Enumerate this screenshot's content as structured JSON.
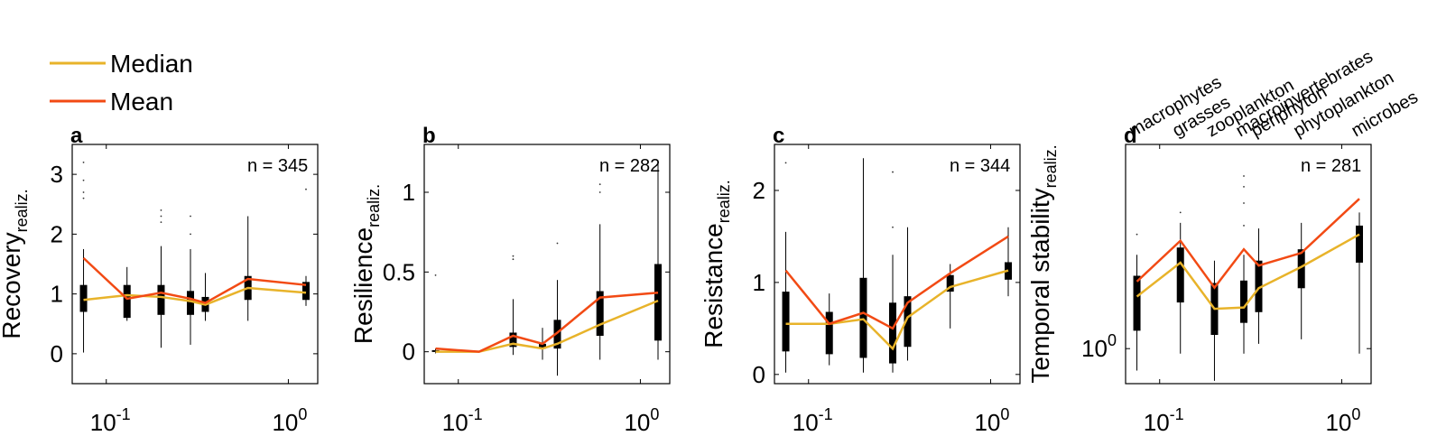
{
  "legend": {
    "median_label": "Median",
    "mean_label": "Mean",
    "median_color": "#e8b32a",
    "mean_color": "#f24a14"
  },
  "categories": [
    "macrophytes",
    "grasses",
    "zooplankton",
    "macroinvertebrates",
    "periphyton",
    "phytoplankton",
    "microbes"
  ],
  "chart_data": [
    {
      "type": "box",
      "panel": "a",
      "n_label": "n = 345",
      "ylabel": "Recovery",
      "ylabel_sub": "realiz.",
      "xscale": "log",
      "xlim": [
        0.065,
        1.45
      ],
      "ylim": [
        -0.5,
        3.5
      ],
      "yticks": [
        0,
        1,
        2,
        3
      ],
      "ytick_labels": [
        "0",
        "1",
        "2",
        "3"
      ],
      "x": [
        0.075,
        0.13,
        0.2,
        0.29,
        0.35,
        0.6,
        1.25
      ],
      "boxes": [
        {
          "q1": 0.7,
          "q3": 1.15,
          "wlo": 0.02,
          "whi": 1.75,
          "out": [
            2.6,
            2.7,
            2.9,
            3.2
          ]
        },
        {
          "q1": 0.6,
          "q3": 1.15,
          "wlo": 0.55,
          "whi": 1.45,
          "out": []
        },
        {
          "q1": 0.65,
          "q3": 1.15,
          "wlo": 0.1,
          "whi": 1.8,
          "out": [
            2.2,
            2.3,
            2.4
          ]
        },
        {
          "q1": 0.65,
          "q3": 1.05,
          "wlo": 0.15,
          "whi": 1.75,
          "out": [
            2.0,
            2.3
          ]
        },
        {
          "q1": 0.7,
          "q3": 0.95,
          "wlo": 0.55,
          "whi": 1.35,
          "out": []
        },
        {
          "q1": 0.9,
          "q3": 1.3,
          "wlo": 0.55,
          "whi": 2.3,
          "out": []
        },
        {
          "q1": 0.9,
          "q3": 1.2,
          "wlo": 0.8,
          "whi": 1.3,
          "out": [
            2.75
          ]
        }
      ],
      "median_line": [
        0.9,
        0.98,
        0.95,
        0.88,
        0.82,
        1.1,
        1.02
      ],
      "mean_line": [
        1.6,
        0.92,
        1.02,
        0.92,
        0.85,
        1.25,
        1.15
      ],
      "xticks": [
        0.1,
        1.0
      ],
      "xtick_labels": [
        "10",
        "10"
      ],
      "xtick_exponents": [
        "-1",
        "0"
      ]
    },
    {
      "type": "box",
      "panel": "b",
      "n_label": "n = 282",
      "ylabel": "Resilience",
      "ylabel_sub": "realiz.",
      "xscale": "log",
      "xlim": [
        0.065,
        1.45
      ],
      "ylim": [
        -0.2,
        1.3
      ],
      "yticks": [
        0,
        0.5,
        1
      ],
      "ytick_labels": [
        "0",
        "0.5",
        "1"
      ],
      "x": [
        0.075,
        0.2,
        0.29,
        0.35,
        0.6,
        1.25
      ],
      "boxes": [
        {
          "q1": 0.0,
          "q3": 0.01,
          "wlo": -0.01,
          "whi": 0.02,
          "out": [
            0.48
          ]
        },
        {
          "q1": 0.03,
          "q3": 0.12,
          "wlo": -0.02,
          "whi": 0.33,
          "out": [
            0.58,
            0.6
          ]
        },
        {
          "q1": 0.02,
          "q3": 0.05,
          "wlo": -0.05,
          "whi": 0.15,
          "out": []
        },
        {
          "q1": 0.02,
          "q3": 0.2,
          "wlo": -0.15,
          "whi": 0.45,
          "out": [
            0.68
          ]
        },
        {
          "q1": 0.1,
          "q3": 0.38,
          "wlo": -0.05,
          "whi": 0.8,
          "out": [
            1.0,
            1.05
          ]
        },
        {
          "q1": 0.07,
          "q3": 0.55,
          "wlo": -0.05,
          "whi": 1.2,
          "out": []
        }
      ],
      "median_line_x": [
        0.075,
        0.13,
        0.2,
        0.29,
        0.35,
        0.6,
        1.25
      ],
      "median_line": [
        0.0,
        0.0,
        0.05,
        0.02,
        0.05,
        0.17,
        0.32
      ],
      "mean_line": [
        0.02,
        0.0,
        0.1,
        0.05,
        0.12,
        0.34,
        0.37
      ],
      "xticks": [
        0.1,
        1.0
      ],
      "xtick_labels": [
        "10",
        "10"
      ],
      "xtick_exponents": [
        "-1",
        "0"
      ]
    },
    {
      "type": "box",
      "panel": "c",
      "n_label": "n = 344",
      "ylabel": "Resistance",
      "ylabel_sub": "realiz.",
      "xscale": "log",
      "xlim": [
        0.065,
        1.45
      ],
      "ylim": [
        -0.1,
        2.5
      ],
      "yticks": [
        0,
        1,
        2
      ],
      "ytick_labels": [
        "0",
        "1",
        "2"
      ],
      "x": [
        0.075,
        0.13,
        0.2,
        0.29,
        0.35,
        0.6,
        1.25
      ],
      "boxes": [
        {
          "q1": 0.25,
          "q3": 0.9,
          "wlo": 0.02,
          "whi": 1.55,
          "out": [
            2.3
          ]
        },
        {
          "q1": 0.22,
          "q3": 0.68,
          "wlo": 0.1,
          "whi": 0.88,
          "out": []
        },
        {
          "q1": 0.18,
          "q3": 1.05,
          "wlo": 0.02,
          "whi": 2.35,
          "out": []
        },
        {
          "q1": 0.12,
          "q3": 0.78,
          "wlo": 0.02,
          "whi": 1.3,
          "out": [
            1.6,
            2.2
          ]
        },
        {
          "q1": 0.3,
          "q3": 0.85,
          "wlo": 0.15,
          "whi": 1.6,
          "out": []
        },
        {
          "q1": 0.9,
          "q3": 1.08,
          "wlo": 0.5,
          "whi": 1.2,
          "out": []
        },
        {
          "q1": 1.03,
          "q3": 1.22,
          "wlo": 0.85,
          "whi": 1.6,
          "out": []
        }
      ],
      "median_line": [
        0.55,
        0.55,
        0.6,
        0.28,
        0.62,
        0.95,
        1.13
      ],
      "mean_line": [
        1.13,
        0.55,
        0.67,
        0.5,
        0.78,
        1.1,
        1.5
      ],
      "xticks": [
        0.1,
        1.0
      ],
      "xtick_labels": [
        "10",
        "10"
      ],
      "xtick_exponents": [
        "-1",
        "0"
      ]
    },
    {
      "type": "box",
      "panel": "d",
      "n_label": "n = 281",
      "ylabel": "Temporal stability",
      "ylabel_sub": "realiz.",
      "xscale": "log",
      "yscale": "log",
      "xlim": [
        0.065,
        1.45
      ],
      "ylim": [
        0.7,
        8.0
      ],
      "yticks": [
        1
      ],
      "ytick_labels": [
        "10"
      ],
      "ytick_exponents": [
        "0"
      ],
      "x": [
        0.075,
        0.13,
        0.2,
        0.29,
        0.35,
        0.6,
        1.25
      ],
      "boxes": [
        {
          "q1": 1.2,
          "q3": 2.1,
          "wlo": 0.8,
          "whi": 2.6,
          "out": [
            3.2
          ]
        },
        {
          "q1": 1.6,
          "q3": 2.8,
          "wlo": 0.95,
          "whi": 3.6,
          "out": [
            4.0
          ]
        },
        {
          "q1": 1.15,
          "q3": 1.95,
          "wlo": 0.72,
          "whi": 2.45,
          "out": []
        },
        {
          "q1": 1.3,
          "q3": 2.0,
          "wlo": 0.95,
          "whi": 2.6,
          "out": [
            3.5,
            4.4,
            5.2,
            5.8
          ]
        },
        {
          "q1": 1.45,
          "q3": 2.45,
          "wlo": 1.05,
          "whi": 3.4,
          "out": []
        },
        {
          "q1": 1.85,
          "q3": 2.75,
          "wlo": 1.1,
          "whi": 3.6,
          "out": []
        },
        {
          "q1": 2.4,
          "q3": 3.5,
          "wlo": 0.95,
          "whi": 4.0,
          "out": []
        }
      ],
      "median_line": [
        1.7,
        2.4,
        1.5,
        1.52,
        1.85,
        2.3,
        3.2
      ],
      "mean_line": [
        1.98,
        3.0,
        1.86,
        2.75,
        2.33,
        2.65,
        4.6
      ],
      "xticks": [
        0.1,
        1.0
      ],
      "xtick_labels": [
        "10",
        "10"
      ],
      "xtick_exponents": [
        "-1",
        "0"
      ]
    }
  ]
}
